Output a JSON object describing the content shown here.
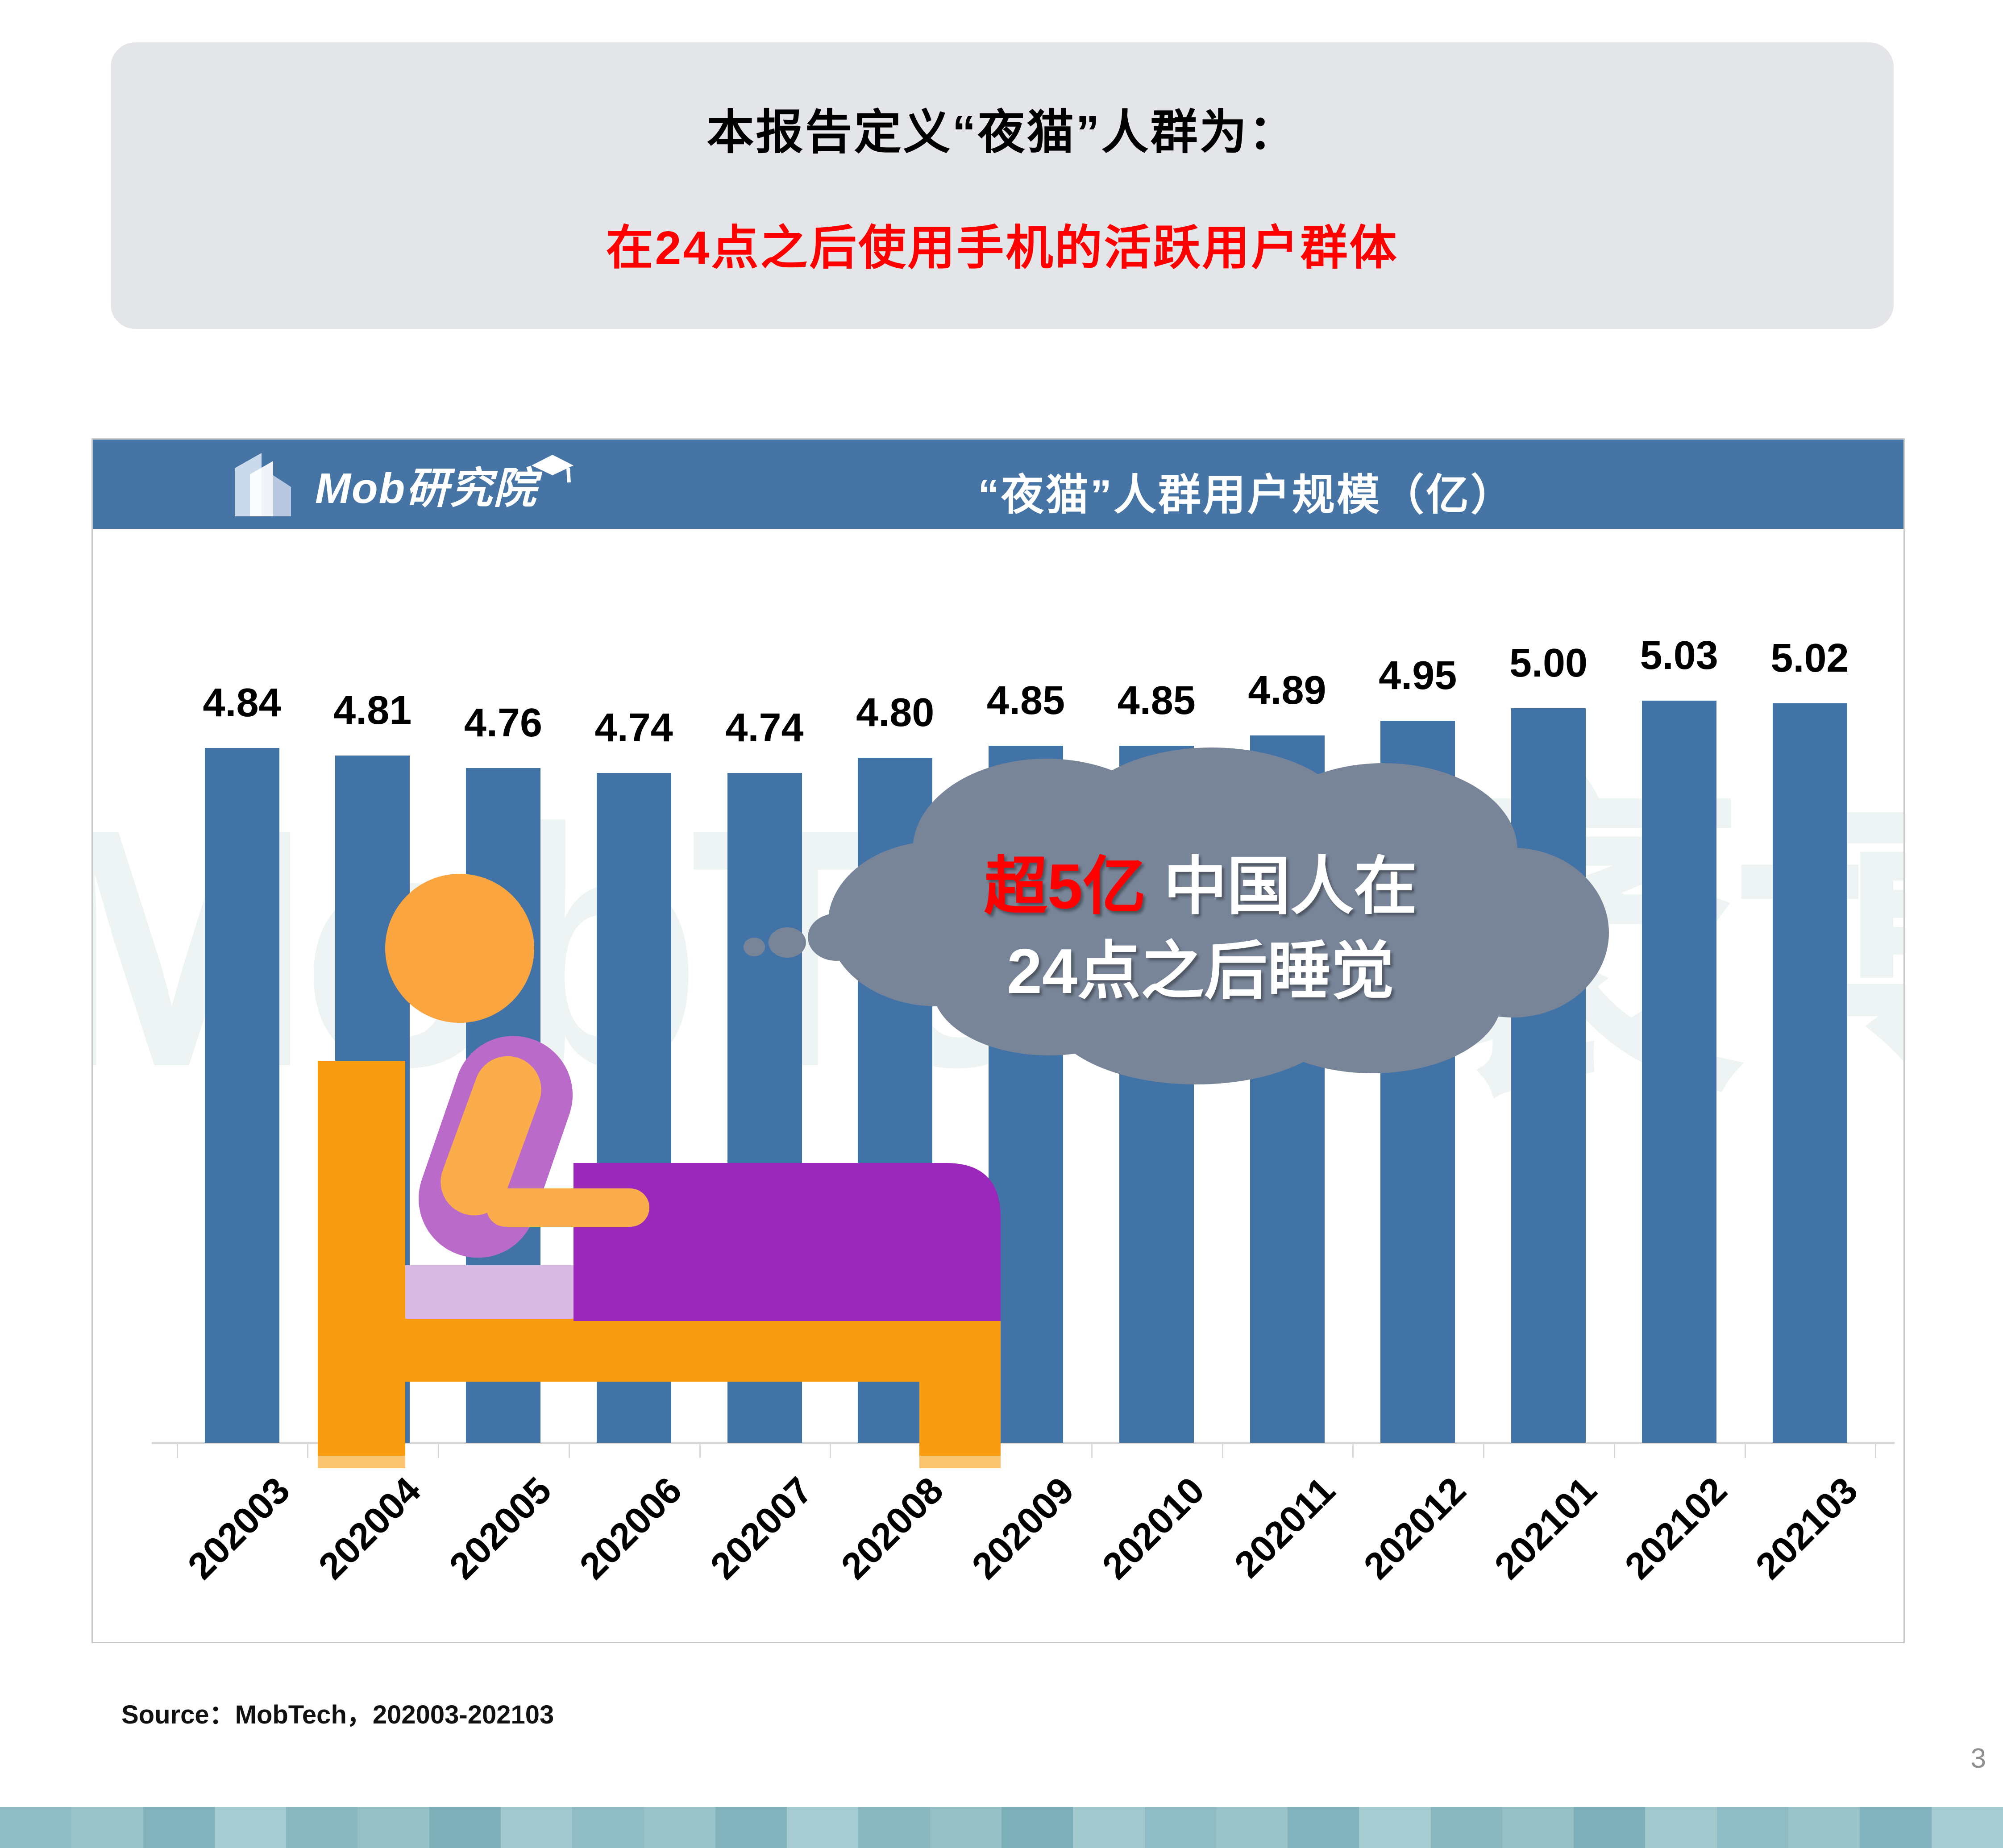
{
  "page": {
    "background": "#FFFFFF",
    "page_number": "3"
  },
  "title_box": {
    "background": "#E4E5E9",
    "line1": "本报告定义“夜猫”人群为：",
    "line1_color": "#000000",
    "line2": "在24点之后使用手机的活跃用户群体",
    "line2_color": "#FF0000"
  },
  "chart_panel": {
    "border_color": "#C9C9C9",
    "header": {
      "background": "#4574A5",
      "logo_text": "Mob研究院",
      "title": "“夜猫”人群用户规模（亿）",
      "text_color": "#FFFFFF"
    },
    "watermark": {
      "text": "MobTech袤博",
      "color": "#8DB8B4"
    },
    "axis_color": "#D9D9D9",
    "bar_color": "#4173A6"
  },
  "chart_data": {
    "type": "bar",
    "title": "“夜猫”人群用户规模（亿）",
    "categories": [
      "202003",
      "202004",
      "202005",
      "202006",
      "202007",
      "202008",
      "202009",
      "202010",
      "202011",
      "202012",
      "202101",
      "202102",
      "202103"
    ],
    "values": [
      4.84,
      4.81,
      4.76,
      4.74,
      4.74,
      4.8,
      4.85,
      4.85,
      4.89,
      4.95,
      5.0,
      5.03,
      5.02
    ],
    "value_labels": [
      "4.84",
      "4.81",
      "4.76",
      "4.74",
      "4.74",
      "4.80",
      "4.85",
      "4.85",
      "4.89",
      "4.95",
      "5.00",
      "5.03",
      "5.02"
    ],
    "unit": "亿",
    "xlabel": "",
    "ylabel": "",
    "y_axis_visible": false,
    "gridlines": false,
    "legend": false,
    "x_tick_rotation": 45,
    "bar_color": "#4173A6",
    "label_color": "#000000"
  },
  "annotation_cloud": {
    "background": "#788598",
    "highlight_text": "超5亿",
    "highlight_color": "#FF0000",
    "line1_rest": "中国人在",
    "line2": "24点之后睡觉",
    "text_color": "#FFFFFF"
  },
  "illustration": {
    "name": "person-sleeping-in-bed",
    "bed_color": "#F99C0F",
    "bed_leg_tip_color": "#FBC470",
    "blanket_color": "#9C28BB",
    "pillow_color": "#D8BAE4",
    "torso_color": "#BA6AC8",
    "skin_color": "#FAA53F",
    "arm_color": "#FAAD4A"
  },
  "source_note": "Source：MobTech，202003-202103",
  "footer_bar": {
    "palette": [
      "#8FBCC5",
      "#9BC4CA",
      "#82B3BD",
      "#A5CCD1",
      "#8AB8C1",
      "#94C0C6",
      "#7EB0BA",
      "#A0C8CD"
    ]
  }
}
